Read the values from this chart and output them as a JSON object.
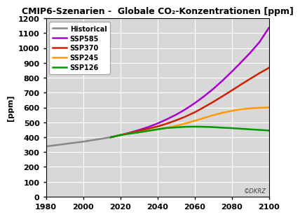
{
  "title": "CMIP6-Szenarien -  Globale CO₂-Konzentrationen [ppm]",
  "ylabel": "[ppm]",
  "xlim": [
    1980,
    2100
  ],
  "ylim": [
    0,
    1200
  ],
  "yticks": [
    0,
    100,
    200,
    300,
    400,
    500,
    600,
    700,
    800,
    900,
    1000,
    1100,
    1200
  ],
  "xticks": [
    1980,
    2000,
    2020,
    2040,
    2060,
    2080,
    2100
  ],
  "fig_bg_color": "#ffffff",
  "plot_bg_color": "#d8d8d8",
  "grid_color": "#ffffff",
  "watermark": "©DKRZ",
  "series": [
    {
      "label": "Historical",
      "color": "#888888",
      "x": [
        1980,
        1985,
        1990,
        1995,
        2000,
        2005,
        2010,
        2015,
        2020
      ],
      "y": [
        338,
        346,
        354,
        362,
        370,
        380,
        390,
        400,
        414
      ]
    },
    {
      "label": "SSP585",
      "color": "#aa00cc",
      "x": [
        2015,
        2020,
        2025,
        2030,
        2035,
        2040,
        2045,
        2050,
        2055,
        2060,
        2065,
        2070,
        2075,
        2080,
        2085,
        2090,
        2095,
        2100
      ],
      "y": [
        400,
        414,
        430,
        448,
        468,
        492,
        520,
        551,
        587,
        628,
        674,
        724,
        780,
        840,
        903,
        968,
        1040,
        1135
      ]
    },
    {
      "label": "SSP370",
      "color": "#cc2200",
      "x": [
        2015,
        2020,
        2025,
        2030,
        2035,
        2040,
        2045,
        2050,
        2055,
        2060,
        2065,
        2070,
        2075,
        2080,
        2085,
        2090,
        2095,
        2100
      ],
      "y": [
        400,
        414,
        428,
        443,
        457,
        472,
        491,
        513,
        538,
        567,
        601,
        637,
        675,
        714,
        754,
        793,
        831,
        866
      ]
    },
    {
      "label": "SSP245",
      "color": "#ff9900",
      "x": [
        2015,
        2020,
        2025,
        2030,
        2035,
        2040,
        2045,
        2050,
        2055,
        2060,
        2065,
        2070,
        2075,
        2080,
        2085,
        2090,
        2095,
        2100
      ],
      "y": [
        400,
        414,
        424,
        433,
        442,
        452,
        463,
        476,
        492,
        510,
        529,
        548,
        564,
        577,
        588,
        594,
        598,
        600
      ]
    },
    {
      "label": "SSP126",
      "color": "#009900",
      "x": [
        2015,
        2020,
        2025,
        2030,
        2035,
        2040,
        2045,
        2050,
        2055,
        2060,
        2065,
        2070,
        2075,
        2080,
        2085,
        2090,
        2095,
        2100
      ],
      "y": [
        400,
        414,
        424,
        433,
        443,
        453,
        462,
        466,
        470,
        471,
        470,
        468,
        464,
        461,
        457,
        453,
        449,
        445
      ]
    }
  ]
}
